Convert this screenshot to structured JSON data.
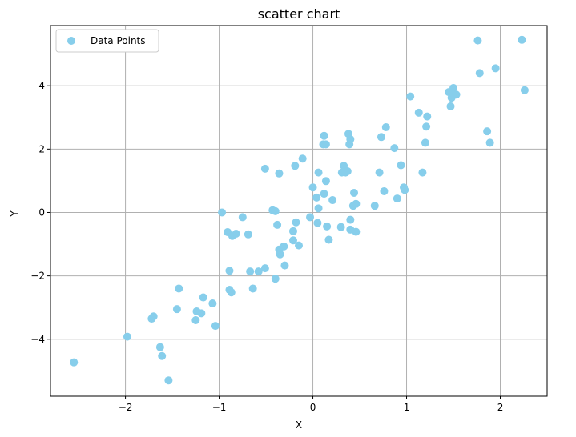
{
  "chart_data": {
    "type": "scatter",
    "title": "scatter chart",
    "xlabel": "X",
    "ylabel": "Y",
    "xlim": [
      -2.8,
      2.5
    ],
    "ylim": [
      -5.8,
      5.9
    ],
    "xticks": [
      -2,
      -1,
      0,
      1,
      2
    ],
    "xtick_labels": [
      "−2",
      "−1",
      "0",
      "1",
      "2"
    ],
    "yticks": [
      -4,
      -2,
      0,
      2,
      4
    ],
    "ytick_labels": [
      "−4",
      "−2",
      "0",
      "2",
      "4"
    ],
    "grid": true,
    "legend_position": "top-left",
    "colors": {
      "points": "#87ceeb",
      "grid": "#b0b0b0"
    },
    "series": [
      {
        "name": "Data Points",
        "points": [
          [
            -2.55,
            -4.73
          ],
          [
            -1.98,
            -3.92
          ],
          [
            -1.72,
            -3.35
          ],
          [
            -1.7,
            -3.28
          ],
          [
            -1.63,
            -4.25
          ],
          [
            -1.61,
            -4.53
          ],
          [
            -1.54,
            -5.3
          ],
          [
            -1.45,
            -3.05
          ],
          [
            -1.43,
            -2.4
          ],
          [
            -1.25,
            -3.4
          ],
          [
            -1.24,
            -3.12
          ],
          [
            -1.19,
            -3.18
          ],
          [
            -1.17,
            -2.68
          ],
          [
            -1.07,
            -2.87
          ],
          [
            -1.04,
            -3.58
          ],
          [
            -0.97,
            0.0
          ],
          [
            -0.91,
            -0.62
          ],
          [
            -0.89,
            -1.84
          ],
          [
            -0.89,
            -2.44
          ],
          [
            -0.87,
            -2.52
          ],
          [
            -0.86,
            -0.74
          ],
          [
            -0.82,
            -0.67
          ],
          [
            -0.75,
            -0.15
          ],
          [
            -0.69,
            -0.69
          ],
          [
            -0.67,
            -1.86
          ],
          [
            -0.64,
            -2.4
          ],
          [
            -0.58,
            -1.86
          ],
          [
            -0.51,
            1.38
          ],
          [
            -0.51,
            -1.76
          ],
          [
            -0.43,
            0.07
          ],
          [
            -0.4,
            0.04
          ],
          [
            -0.4,
            -2.09
          ],
          [
            -0.38,
            -0.39
          ],
          [
            -0.36,
            1.23
          ],
          [
            -0.36,
            -1.17
          ],
          [
            -0.35,
            -1.32
          ],
          [
            -0.31,
            -1.07
          ],
          [
            -0.3,
            -1.67
          ],
          [
            -0.21,
            -0.88
          ],
          [
            -0.21,
            -0.59
          ],
          [
            -0.19,
            1.47
          ],
          [
            -0.18,
            -0.31
          ],
          [
            -0.15,
            -1.04
          ],
          [
            -0.11,
            1.7
          ],
          [
            -0.03,
            -0.15
          ],
          [
            0.0,
            0.79
          ],
          [
            0.04,
            0.47
          ],
          [
            0.05,
            -0.33
          ],
          [
            0.06,
            0.13
          ],
          [
            0.06,
            1.26
          ],
          [
            0.11,
            2.15
          ],
          [
            0.12,
            2.42
          ],
          [
            0.12,
            0.59
          ],
          [
            0.14,
            2.15
          ],
          [
            0.14,
            0.99
          ],
          [
            0.15,
            -0.44
          ],
          [
            0.17,
            -0.86
          ],
          [
            0.21,
            0.39
          ],
          [
            0.3,
            -0.46
          ],
          [
            0.31,
            1.26
          ],
          [
            0.33,
            1.47
          ],
          [
            0.35,
            1.26
          ],
          [
            0.37,
            1.3
          ],
          [
            0.38,
            2.48
          ],
          [
            0.39,
            2.15
          ],
          [
            0.4,
            2.31
          ],
          [
            0.4,
            -0.54
          ],
          [
            0.4,
            -0.23
          ],
          [
            0.43,
            0.21
          ],
          [
            0.44,
            0.62
          ],
          [
            0.46,
            0.27
          ],
          [
            0.46,
            -0.61
          ],
          [
            0.66,
            0.21
          ],
          [
            0.71,
            1.26
          ],
          [
            0.73,
            2.38
          ],
          [
            0.76,
            0.67
          ],
          [
            0.78,
            2.69
          ],
          [
            0.87,
            2.03
          ],
          [
            0.9,
            0.44
          ],
          [
            0.94,
            1.49
          ],
          [
            0.97,
            0.79
          ],
          [
            0.98,
            0.71
          ],
          [
            1.04,
            3.66
          ],
          [
            1.13,
            3.15
          ],
          [
            1.17,
            1.26
          ],
          [
            1.2,
            2.2
          ],
          [
            1.21,
            2.71
          ],
          [
            1.22,
            3.03
          ],
          [
            1.45,
            3.8
          ],
          [
            1.47,
            3.35
          ],
          [
            1.48,
            3.62
          ],
          [
            1.5,
            3.93
          ],
          [
            1.5,
            3.75
          ],
          [
            1.53,
            3.72
          ],
          [
            1.76,
            5.43
          ],
          [
            1.78,
            4.4
          ],
          [
            1.86,
            2.56
          ],
          [
            1.89,
            2.2
          ],
          [
            1.95,
            4.55
          ],
          [
            2.23,
            5.45
          ],
          [
            2.26,
            3.86
          ]
        ]
      }
    ]
  }
}
